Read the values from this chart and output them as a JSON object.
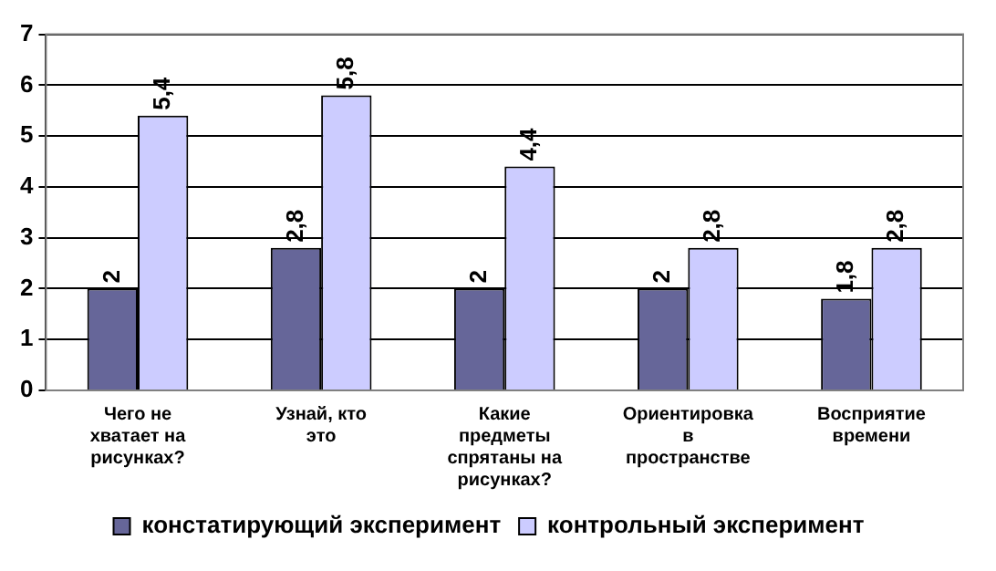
{
  "chart_data": {
    "type": "bar",
    "categories": [
      "Чего не хватает на рисунках?",
      "Узнай, кто это",
      "Какие предметы спрятаны на рисунках?",
      "Ориентировка в пространстве",
      "Восприятие времени"
    ],
    "series": [
      {
        "name": "констатирующий эксперимент",
        "color": "#666699",
        "values": [
          2,
          2.8,
          2,
          2,
          1.8
        ],
        "value_labels": [
          "2",
          "2,8",
          "2",
          "2",
          "1,8"
        ]
      },
      {
        "name": "контрольный эксперимент",
        "color": "#ccccff",
        "values": [
          5.4,
          5.8,
          4.4,
          2.8,
          2.8
        ],
        "value_labels": [
          "5,4",
          "5,8",
          "4,4",
          "2,8",
          "2,8"
        ]
      }
    ],
    "ylim": [
      0,
      7
    ],
    "yticks": [
      0,
      1,
      2,
      3,
      4,
      5,
      6,
      7
    ],
    "grid": "y",
    "legend": "bottom"
  }
}
